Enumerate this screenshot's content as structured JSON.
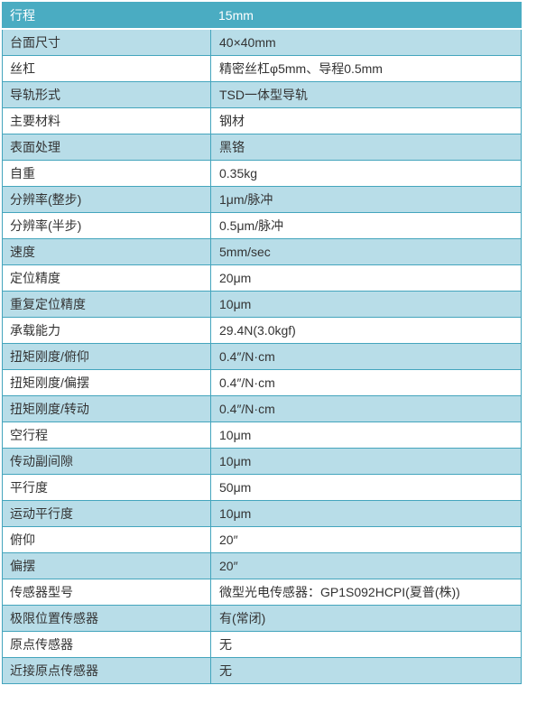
{
  "colors": {
    "header_bg": "#4aacc2",
    "header_text": "#ffffff",
    "alt_row_bg": "#b8dde8",
    "border": "#44a5bd",
    "body_text": "#333333"
  },
  "table": {
    "header": {
      "label": "行程",
      "value": "15mm"
    },
    "rows": [
      {
        "label": "台面尺寸",
        "value": "40×40mm"
      },
      {
        "label": "丝杠",
        "value": "精密丝杠φ5mm、导程0.5mm"
      },
      {
        "label": "导轨形式",
        "value": "TSD一体型导轨"
      },
      {
        "label": "主要材料",
        "value": "钢材"
      },
      {
        "label": "表面处理",
        "value": "黑铬"
      },
      {
        "label": "自重",
        "value": "0.35kg"
      },
      {
        "label": "分辨率(整步)",
        "value": "1μm/脉冲"
      },
      {
        "label": "分辨率(半步)",
        "value": "0.5μm/脉冲"
      },
      {
        "label": "速度",
        "value": "5mm/sec"
      },
      {
        "label": "定位精度",
        "value": "20μm"
      },
      {
        "label": "重复定位精度",
        "value": "10μm"
      },
      {
        "label": "承载能力",
        "value": "29.4N(3.0kgf)"
      },
      {
        "label": "扭矩刚度/俯仰",
        "value": "0.4″/N·cm"
      },
      {
        "label": "扭矩刚度/偏摆",
        "value": "0.4″/N·cm"
      },
      {
        "label": "扭矩刚度/转动",
        "value": "0.4″/N·cm"
      },
      {
        "label": "空行程",
        "value": "10μm"
      },
      {
        "label": "传动副间隙",
        "value": "10μm"
      },
      {
        "label": "平行度",
        "value": "50μm"
      },
      {
        "label": "运动平行度",
        "value": "10μm"
      },
      {
        "label": "俯仰",
        "value": "20″"
      },
      {
        "label": "偏摆",
        "value": "20″"
      },
      {
        "label": "传感器型号",
        "value": "微型光电传感器：GP1S092HCPI(夏普(株))"
      },
      {
        "label": "极限位置传感器",
        "value": "有(常闭)"
      },
      {
        "label": "原点传感器",
        "value": "无"
      },
      {
        "label": "近接原点传感器",
        "value": "无"
      }
    ]
  }
}
